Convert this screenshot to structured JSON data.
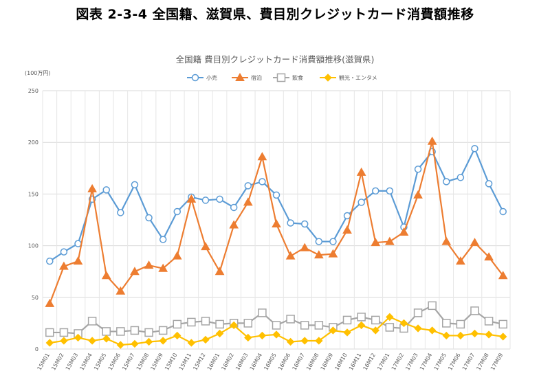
{
  "page": {
    "heading": "図表 2-3-4 全国籍、滋賀県、費目別クレジットカード消費額推移"
  },
  "chart_data": {
    "type": "line",
    "title": "全国籍 費目別クレジットカード消費額推移(滋賀県)",
    "unit_label": "(100万円)",
    "ylim": [
      0,
      250
    ],
    "yticks": [
      0,
      50,
      100,
      150,
      200,
      250
    ],
    "grid": true,
    "legend_position": "top",
    "categories": [
      "15M01",
      "15M02",
      "15M03",
      "15M04",
      "15M05",
      "15M06",
      "15M07",
      "15M08",
      "15M09",
      "15M10",
      "15M11",
      "15M12",
      "16M01",
      "16M02",
      "16M03",
      "16M04",
      "16M05",
      "16M06",
      "16M07",
      "16M08",
      "16M09",
      "16M10",
      "16M11",
      "16M12",
      "17M01",
      "17M02",
      "17M03",
      "17M04",
      "17M05",
      "17M06",
      "17M07",
      "17M08",
      "17M09"
    ],
    "series": [
      {
        "name": "小売",
        "color": "#5b9bd5",
        "marker": "circle",
        "values": [
          85,
          94,
          102,
          145,
          154,
          132,
          159,
          127,
          106,
          133,
          147,
          144,
          145,
          137,
          158,
          162,
          149,
          122,
          121,
          104,
          104,
          129,
          142,
          153,
          153,
          118,
          174,
          191,
          162,
          166,
          194,
          160,
          133
        ]
      },
      {
        "name": "宿泊",
        "color": "#ed7d31",
        "marker": "triangle",
        "values": [
          44,
          80,
          85,
          155,
          71,
          56,
          75,
          81,
          78,
          90,
          145,
          99,
          75,
          120,
          142,
          186,
          121,
          90,
          98,
          91,
          92,
          115,
          171,
          103,
          104,
          113,
          149,
          201,
          104,
          85,
          103,
          89,
          71
        ]
      },
      {
        "name": "飲食",
        "color": "#a5a5a5",
        "marker": "square",
        "values": [
          16,
          16,
          15,
          27,
          17,
          17,
          18,
          16,
          18,
          24,
          26,
          27,
          24,
          25,
          25,
          35,
          23,
          29,
          23,
          23,
          21,
          28,
          31,
          28,
          21,
          20,
          35,
          42,
          25,
          24,
          37,
          27,
          24
        ]
      },
      {
        "name": "観光・エンタメ",
        "color": "#ffc000",
        "marker": "diamond",
        "values": [
          6,
          8,
          11,
          8,
          10,
          4,
          5,
          7,
          8,
          13,
          6,
          9,
          15,
          23,
          11,
          13,
          14,
          7,
          8,
          8,
          18,
          16,
          23,
          18,
          31,
          25,
          20,
          18,
          13,
          13,
          15,
          14,
          12
        ]
      }
    ]
  }
}
